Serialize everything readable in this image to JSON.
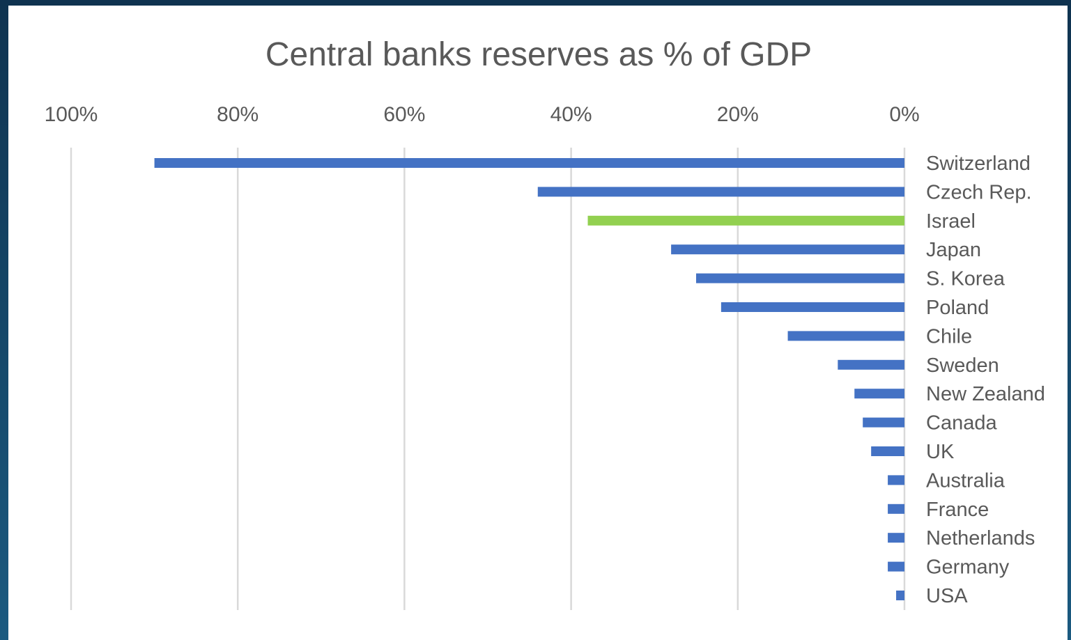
{
  "chart_data": {
    "type": "bar",
    "orientation": "horizontal",
    "x_axis_reversed": true,
    "x_axis_position": "top",
    "title": "Central banks reserves as % of GDP",
    "xlim": [
      0,
      100
    ],
    "x_ticks": [
      "100%",
      "80%",
      "60%",
      "40%",
      "20%",
      "0%"
    ],
    "x_tick_values": [
      100,
      80,
      60,
      40,
      20,
      0
    ],
    "grid": true,
    "legend": "none",
    "categories": [
      "Switzerland",
      "Czech Rep.",
      "Israel",
      "Japan",
      "S. Korea",
      "Poland",
      "Chile",
      "Sweden",
      "New Zealand",
      "Canada",
      "UK",
      "Australia",
      "France",
      "Netherlands",
      "Germany",
      "USA"
    ],
    "values": [
      90,
      44,
      38,
      28,
      25,
      22,
      14,
      8,
      6,
      5,
      4,
      2,
      2,
      2,
      2,
      1
    ],
    "colors": {
      "default": "#4472c4",
      "highlight": "#92d050",
      "highlight_category": "Israel",
      "grid": "#d9d9d9",
      "text": "#595959"
    }
  }
}
